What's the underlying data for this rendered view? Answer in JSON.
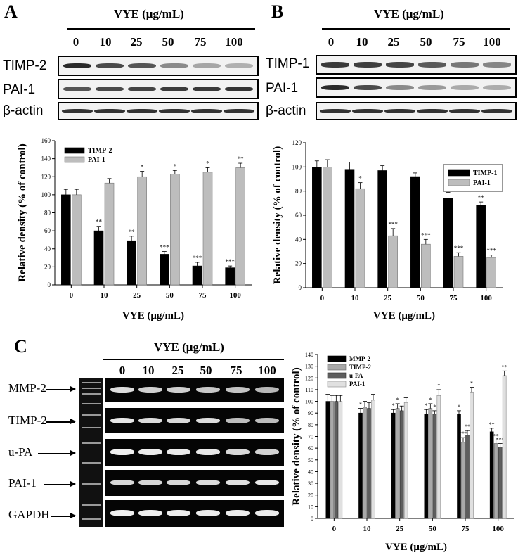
{
  "panel_letters": {
    "a": "A",
    "b": "B",
    "c": "C"
  },
  "vye_header": "VYE (μg/mL)",
  "concentrations": [
    "0",
    "10",
    "25",
    "50",
    "75",
    "100"
  ],
  "panel_a": {
    "blot_labels": [
      "TIMP-2",
      "PAI-1",
      "β-actin"
    ]
  },
  "panel_b": {
    "blot_labels": [
      "TIMP-1",
      "PAI-1",
      "β-actin"
    ]
  },
  "panel_c": {
    "gel_labels": [
      "MMP-2",
      "TIMP-2",
      "u-PA",
      "PAI-1",
      "GAPDH"
    ]
  },
  "colors": {
    "black_bar": "#000000",
    "grey_bar": "#b8b8b8",
    "dark_grey_bar": "#666666",
    "light_grey_bar": "#e0e0e0"
  },
  "chart_data": [
    {
      "type": "bar",
      "panel": "A",
      "categories": [
        "0",
        "10",
        "25",
        "50",
        "75",
        "100"
      ],
      "xlabel": "VYE (μg/mL)",
      "ylabel": "Relative density (% of control)",
      "ylim": [
        0,
        160
      ],
      "yticks": [
        "0",
        "20",
        "40",
        "60",
        "80",
        "100",
        "120",
        "140",
        "160"
      ],
      "legend_position": "top-left",
      "series": [
        {
          "name": "TIMP-2",
          "values": [
            100,
            60,
            49,
            34,
            21,
            19
          ],
          "errors": [
            6,
            5,
            5,
            3,
            4,
            2
          ],
          "sig": [
            "",
            "**",
            "**",
            "***",
            "***",
            "***"
          ]
        },
        {
          "name": "PAI-1",
          "values": [
            100,
            113,
            120,
            123,
            125,
            130
          ],
          "errors": [
            6,
            5,
            6,
            4,
            5,
            5
          ],
          "sig": [
            "",
            "",
            "*",
            "*",
            "*",
            "**"
          ]
        }
      ]
    },
    {
      "type": "bar",
      "panel": "B",
      "categories": [
        "0",
        "10",
        "25",
        "50",
        "75",
        "100"
      ],
      "xlabel": "VYE (μg/mL)",
      "ylabel": "Relative density (% of control)",
      "ylim": [
        0,
        120
      ],
      "yticks": [
        "0",
        "20",
        "40",
        "60",
        "80",
        "100",
        "120"
      ],
      "legend_position": "top-right",
      "series": [
        {
          "name": "TIMP-1",
          "values": [
            100,
            98,
            97,
            92,
            74,
            68
          ],
          "errors": [
            5,
            6,
            4,
            3,
            5,
            3
          ],
          "sig": [
            "",
            "",
            "",
            "",
            "**",
            "**"
          ]
        },
        {
          "name": "PAI-1",
          "values": [
            100,
            82,
            43,
            36,
            26,
            25
          ],
          "errors": [
            6,
            5,
            6,
            4,
            3,
            2
          ],
          "sig": [
            "",
            "*",
            "***",
            "***",
            "***",
            "***"
          ]
        }
      ]
    },
    {
      "type": "bar",
      "panel": "C",
      "categories": [
        "0",
        "10",
        "25",
        "50",
        "75",
        "100"
      ],
      "xlabel": "VYE (μg/mL)",
      "ylabel": "Relative density (% of control)",
      "ylim": [
        0,
        140
      ],
      "yticks": [
        "0",
        "10",
        "20",
        "30",
        "40",
        "50",
        "60",
        "70",
        "80",
        "90",
        "100",
        "110",
        "120",
        "130",
        "140"
      ],
      "legend_position": "top-left",
      "series": [
        {
          "name": "MMP-2",
          "values": [
            100,
            90,
            90,
            89,
            89,
            74
          ],
          "errors": [
            6,
            4,
            3,
            4,
            3,
            3
          ],
          "sig": [
            "",
            "*",
            "*",
            "*",
            "*",
            "**"
          ]
        },
        {
          "name": "TIMP-2",
          "values": [
            100,
            95,
            94,
            94,
            65,
            64
          ],
          "errors": [
            5,
            5,
            4,
            4,
            4,
            3
          ],
          "sig": [
            "",
            "",
            "*",
            "*",
            "***",
            "**"
          ]
        },
        {
          "name": "u-PA",
          "values": [
            100,
            94,
            92,
            89,
            71,
            61
          ],
          "errors": [
            5,
            5,
            4,
            3,
            4,
            3
          ],
          "sig": [
            "",
            "",
            "",
            "*",
            "**",
            "***"
          ]
        },
        {
          "name": "PAI-1",
          "values": [
            100,
            101,
            99,
            105,
            108,
            122
          ],
          "errors": [
            5,
            5,
            4,
            5,
            4,
            4
          ],
          "sig": [
            "",
            "",
            "",
            "*",
            "*",
            "**"
          ]
        }
      ]
    }
  ]
}
